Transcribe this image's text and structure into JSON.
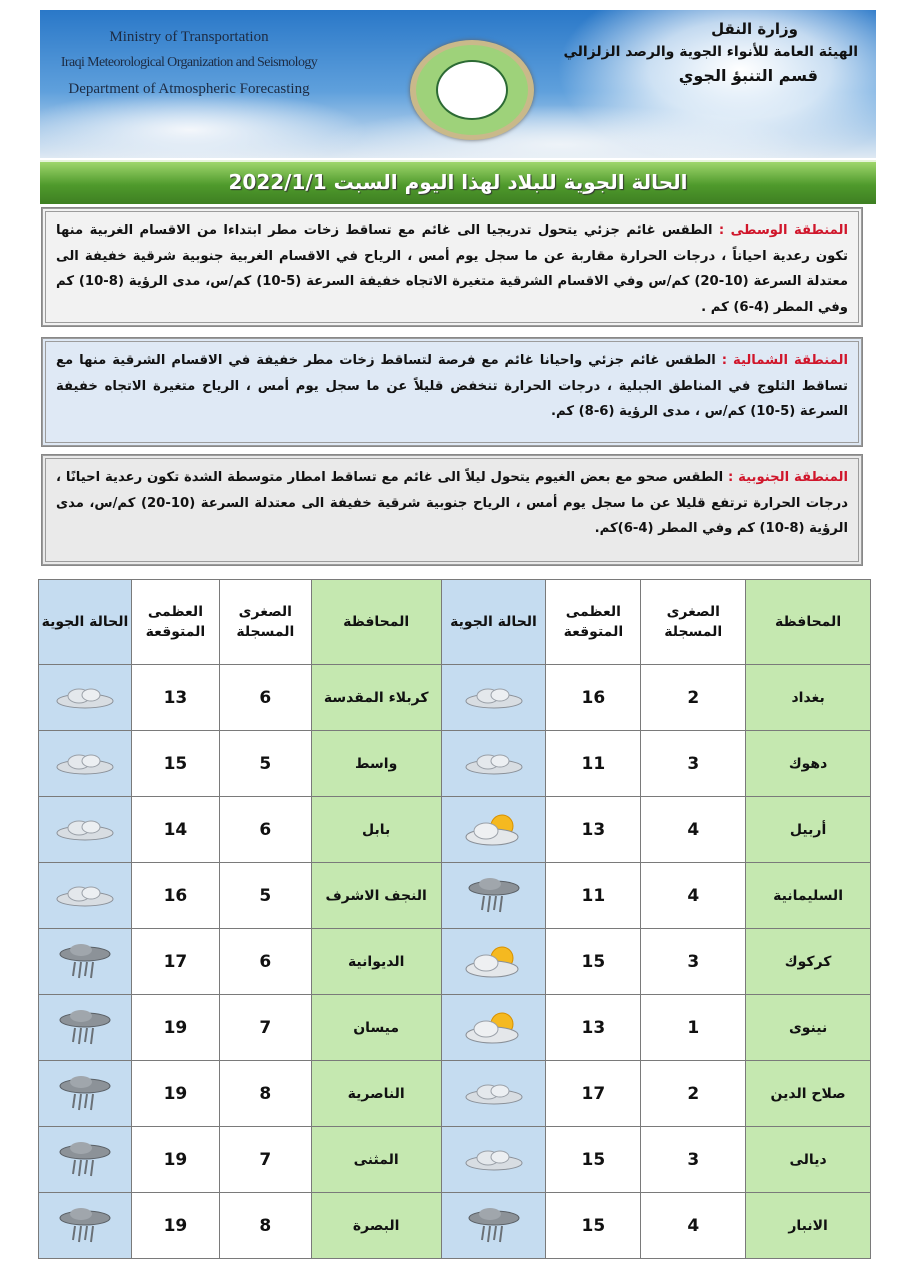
{
  "header": {
    "english": [
      "Ministry of Transportation",
      "Iraqi Meteorological Organization and Seismology",
      "Department of Atmospheric Forecasting"
    ],
    "arabic": [
      "وزارة النقل",
      "الهيئة العامة للأنواء الجوية والرصد الزلزالي",
      "قسم التنبؤ الجوي"
    ],
    "title": "الحالة الجوية للبلاد لهذا اليوم السبت  2022/1/1"
  },
  "regions": [
    {
      "name": "المنطقة الوسطى :",
      "text": "الطقس غائم جزئي يتحول تدريجيا الى غائم مع تساقط زخات مطر ابتداءا من الاقسام الغربية منها تكون رعدية احياناً ، درجات الحرارة مقاربة عن ما سجل يوم أمس ، الرياح في الاقسام الغربية جنوبية شرقية خفيفة الى معتدلة السرعة (10-20) كم/س وفي الاقسام الشرقية متغيرة الاتجاه خفيفة السرعة (5-10) كم/س، مدى الرؤية (8-10) كم وفي المطر (4-6) كم ."
    },
    {
      "name": "المنطقة الشمالية :",
      "text": "الطقس غائم جزئي واحيانا غائم مع فرصة لتساقط زخات مطر خفيفة في الاقسام الشرقية منها مع تساقط الثلوج في المناطق الجبلية ، درجات الحرارة تنخفض قليلاً عن ما سجل يوم أمس ، الرياح متغيرة الاتجاه خفيفة السرعة (5-10) كم/س ، مدى الرؤية (6-8) كم."
    },
    {
      "name": "المنطقة الجنوبية :",
      "text": "الطقس صحو مع بعض الغيوم يتحول ليلاً الى غائم مع تساقط امطار متوسطة الشدة تكون رعدية احيانًا ، درجات الحرارة ترتفع قليلا عن ما سجل يوم أمس ، الرياح جنوبية شرقية خفيفة الى معتدلة السرعة (10-20) كم/س، مدى الرؤية (8-10) كم وفي المطر (4-6)كم."
    }
  ],
  "table": {
    "headers": {
      "province": "المحافظة",
      "min": "الصغرى المسجلة",
      "max": "العظمى المتوقعة",
      "weather": "الحالة الجوية"
    },
    "rows": [
      {
        "r": {
          "province": "بغداد",
          "min": "2",
          "max": "16",
          "icon": "cloudy-icon"
        },
        "l": {
          "province": "كربلاء المقدسة",
          "min": "6",
          "max": "13",
          "icon": "cloudy-icon"
        }
      },
      {
        "r": {
          "province": "دهوك",
          "min": "3",
          "max": "11",
          "icon": "cloudy-icon"
        },
        "l": {
          "province": "واسط",
          "min": "5",
          "max": "15",
          "icon": "cloudy-icon"
        }
      },
      {
        "r": {
          "province": "أربيل",
          "min": "4",
          "max": "13",
          "icon": "partly-cloudy-icon"
        },
        "l": {
          "province": "بابل",
          "min": "6",
          "max": "14",
          "icon": "cloudy-icon"
        }
      },
      {
        "r": {
          "province": "السليمانية",
          "min": "4",
          "max": "11",
          "icon": "rain-cloud-icon"
        },
        "l": {
          "province": "النجف الاشرف",
          "min": "5",
          "max": "16",
          "icon": "cloudy-icon"
        }
      },
      {
        "r": {
          "province": "كركوك",
          "min": "3",
          "max": "15",
          "icon": "partly-cloudy-icon"
        },
        "l": {
          "province": "الديوانية",
          "min": "6",
          "max": "17",
          "icon": "rain-cloud-icon"
        }
      },
      {
        "r": {
          "province": "نينوى",
          "min": "1",
          "max": "13",
          "icon": "partly-cloudy-icon"
        },
        "l": {
          "province": "ميسان",
          "min": "7",
          "max": "19",
          "icon": "rain-cloud-icon"
        }
      },
      {
        "r": {
          "province": "صلاح الدين",
          "min": "2",
          "max": "17",
          "icon": "cloudy-icon"
        },
        "l": {
          "province": "الناصرية",
          "min": "8",
          "max": "19",
          "icon": "rain-cloud-icon"
        }
      },
      {
        "r": {
          "province": "ديالى",
          "min": "3",
          "max": "15",
          "icon": "cloudy-icon"
        },
        "l": {
          "province": "المثنى",
          "min": "7",
          "max": "19",
          "icon": "rain-cloud-icon"
        }
      },
      {
        "r": {
          "province": "الانبار",
          "min": "4",
          "max": "15",
          "icon": "rain-cloud-icon"
        },
        "l": {
          "province": "البصرة",
          "min": "8",
          "max": "19",
          "icon": "rain-cloud-icon"
        }
      }
    ]
  },
  "colors": {
    "region_label": "#d0162b",
    "title_bar": "#4f9a2c",
    "province_col": "#c5e8b0",
    "weather_col": "#c5dcf0"
  }
}
